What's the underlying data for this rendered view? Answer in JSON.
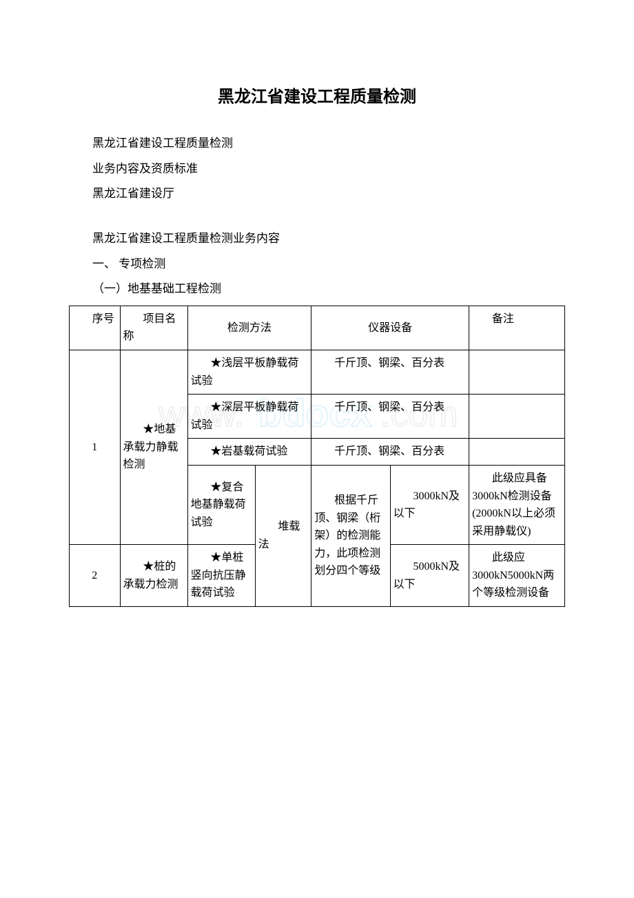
{
  "title": "黑龙江省建设工程质量检测",
  "paragraphs": {
    "p1": "黑龙江省建设工程质量检测",
    "p2": "业务内容及资质标准",
    "p3": "黑龙江省建设厅",
    "p4": "黑龙江省建设工程质量检测业务内容",
    "p5": "一、 专项检测",
    "p6": "（一）地基基础工程检测"
  },
  "headers": {
    "seq": "序号",
    "name": "项目名称",
    "method": "检测方法",
    "equipment": "仪器设备",
    "remark": "备注"
  },
  "row1": {
    "seq": "1",
    "name": "★地基承载力静载检测",
    "m1": "★浅层平板静载荷试验",
    "e1": "千斤顶、钢梁、百分表",
    "m2": "★深层平板静载荷试验",
    "e2": "千斤顶、钢梁、百分表",
    "m3": "★岩基载荷试验",
    "e3": "千斤顶、钢梁、百分表",
    "m4": "★复合地基静载荷试验",
    "m4b": "堆载法",
    "e4a": "根据千斤顶、钢梁（桁架）的检测能力，此项检测划分四个等级",
    "e4b": "3000kN及以下",
    "r4": "此级应具备3000kN检测设备(2000kN以上必须采用静载仪)"
  },
  "row2": {
    "seq": "2",
    "name": "★桩的承载力检测",
    "m1": "★单桩竖向抗压静载荷试验",
    "e1b": "5000kN及以下",
    "r1": "此级应3000kN5000kN两个等级检测设备"
  },
  "watermark_text": "www.bdocx.com"
}
